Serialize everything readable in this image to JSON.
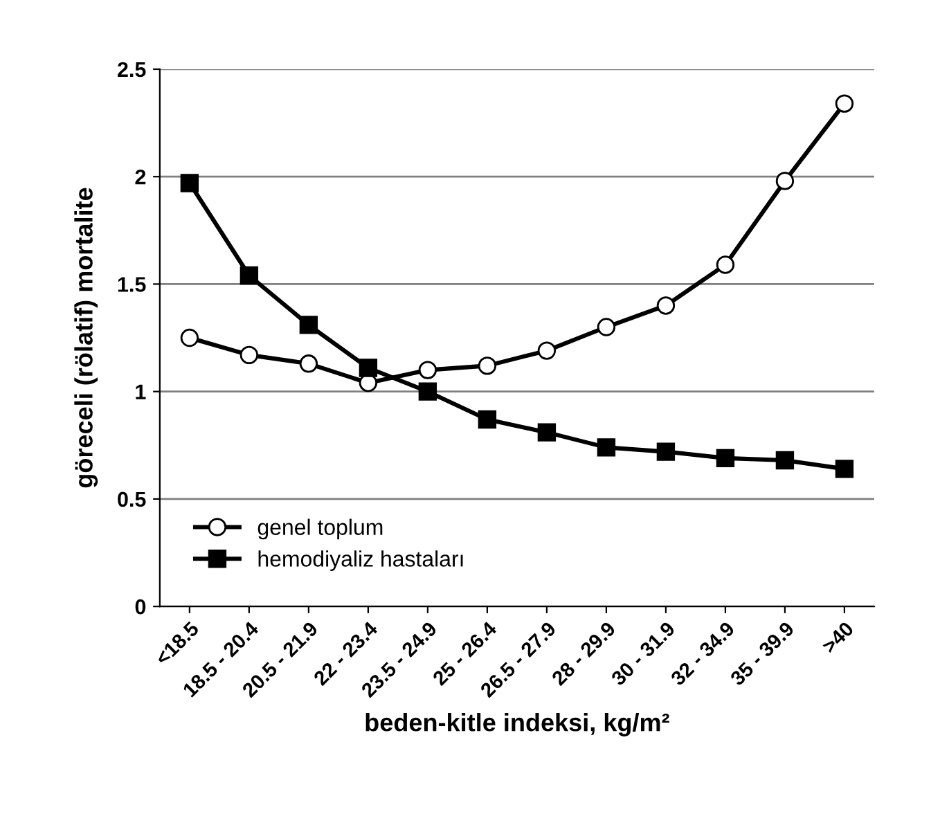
{
  "chart_data": {
    "type": "line",
    "xlabel": "beden-kitle indeksi, kg/m²",
    "ylabel": "göreceli (rölatif) mortalite",
    "categories": [
      "<18.5",
      "18.5 - 20.4",
      "20.5 - 21.9",
      "22 - 23.4",
      "23.5 - 24.9",
      "25 - 26.4",
      "26.5 - 27.9",
      "28 - 29.9",
      "30 - 31.9",
      "32 - 34.9",
      "35 - 39.9",
      ">40"
    ],
    "series": [
      {
        "name": "genel toplum",
        "color": "#000000",
        "marker": "circle",
        "values": [
          1.25,
          1.17,
          1.13,
          1.04,
          1.1,
          1.12,
          1.19,
          1.3,
          1.4,
          1.59,
          1.98,
          2.34
        ]
      },
      {
        "name": "hemodiyaliz hastaları",
        "color": "#000000",
        "marker": "square",
        "values": [
          1.97,
          1.54,
          1.31,
          1.11,
          1.0,
          0.87,
          0.81,
          0.74,
          0.72,
          0.69,
          0.68,
          0.64
        ]
      }
    ],
    "ylim": [
      0,
      2.5
    ],
    "yticks": [
      0,
      0.5,
      1,
      1.5,
      2,
      2.5
    ],
    "grid": "y",
    "legend": "bottom left",
    "line_style": "solid"
  }
}
